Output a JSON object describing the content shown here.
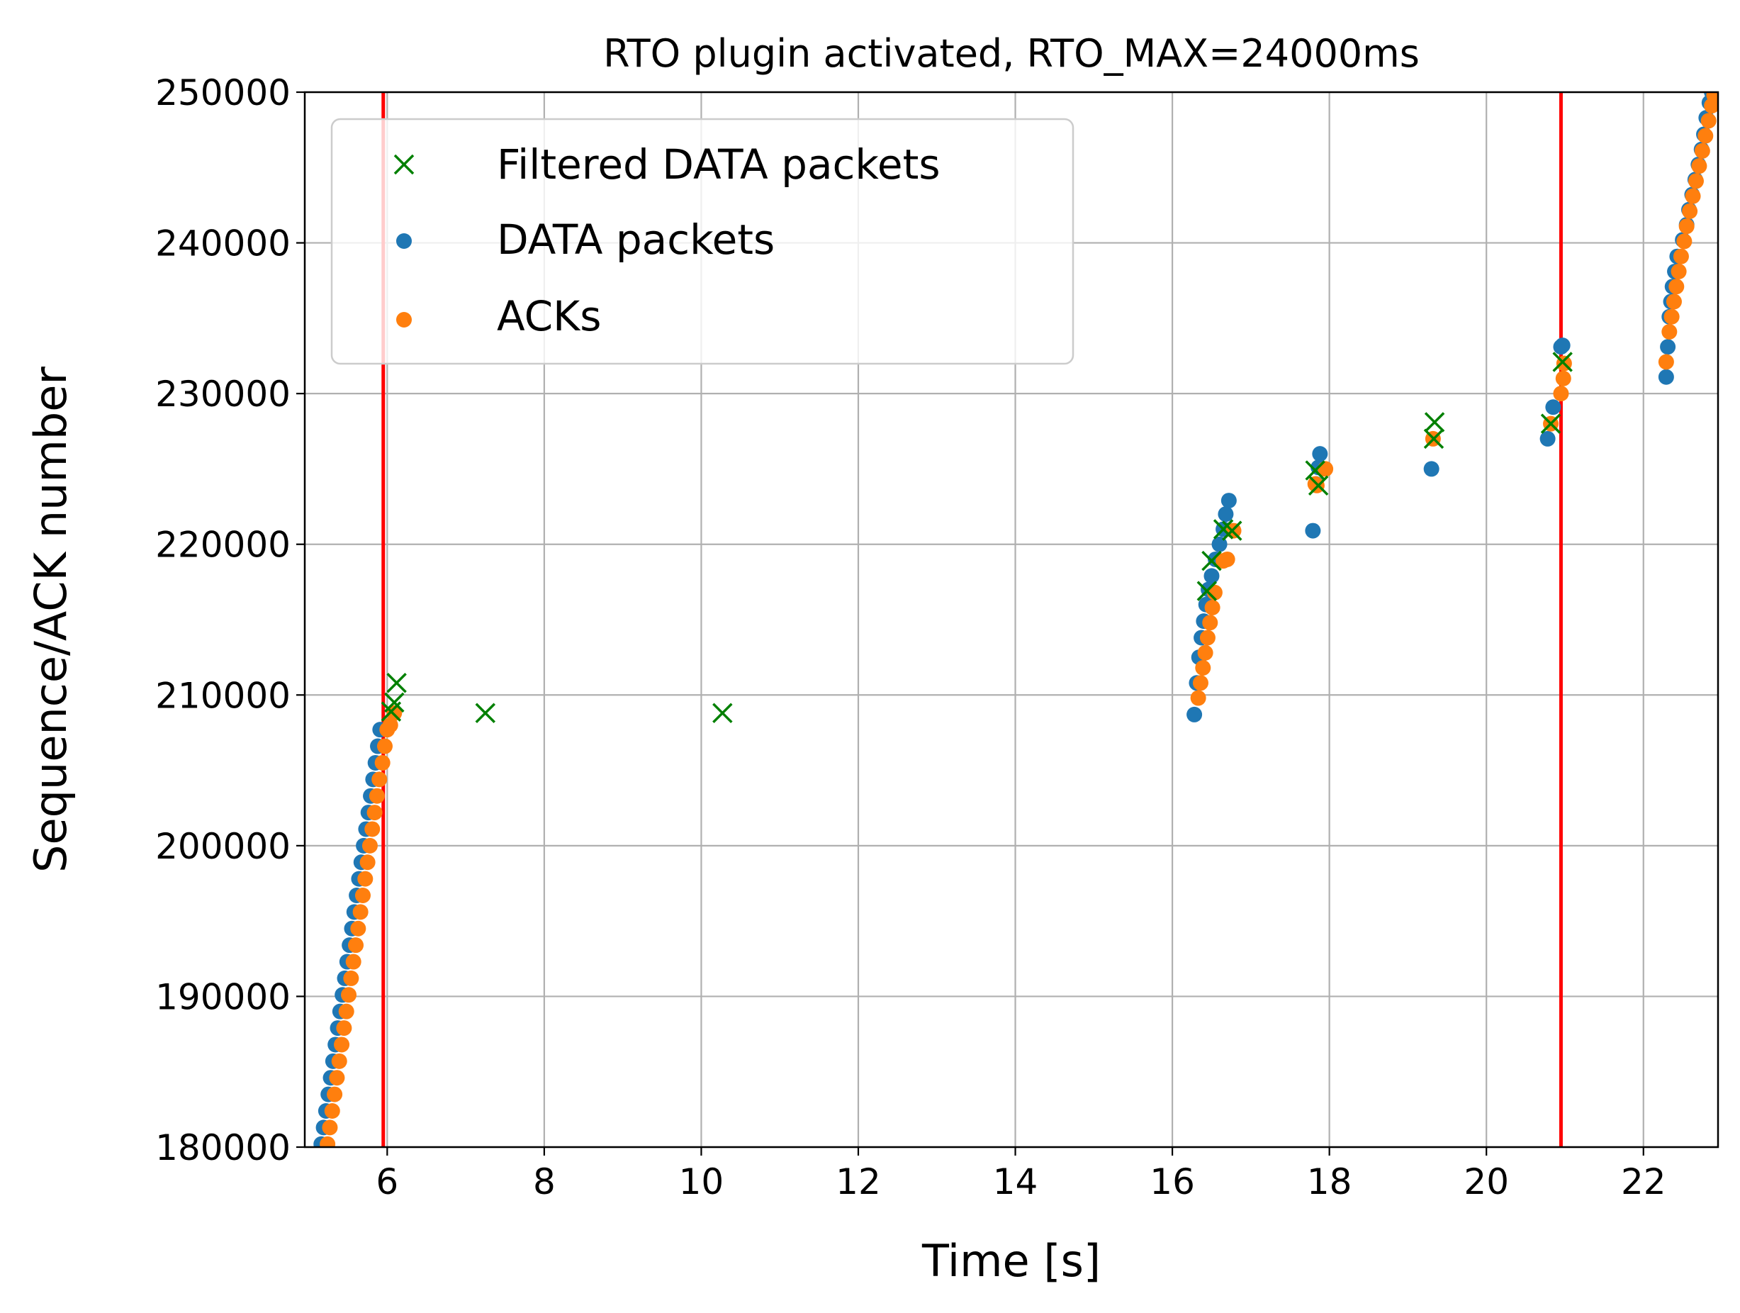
{
  "chart_data": {
    "type": "scatter",
    "title": "RTO plugin activated, RTO_MAX=24000ms",
    "xlabel": "Time [s]",
    "ylabel": "Sequence/ACK number",
    "xlim": [
      4.95,
      22.95
    ],
    "ylim": [
      180000,
      250000
    ],
    "xticks": [
      6,
      8,
      10,
      12,
      14,
      16,
      18,
      20,
      22
    ],
    "xtick_labels": [
      "6",
      "8",
      "10",
      "12",
      "14",
      "16",
      "18",
      "20",
      "22"
    ],
    "yticks": [
      180000,
      190000,
      200000,
      210000,
      220000,
      230000,
      240000,
      250000
    ],
    "ytick_labels": [
      "180000",
      "190000",
      "200000",
      "210000",
      "220000",
      "230000",
      "240000",
      "250000"
    ],
    "grid": true,
    "legend_position": "upper-left",
    "vlines": [
      {
        "x": 5.95,
        "color": "#ff0000"
      },
      {
        "x": 20.95,
        "color": "#ff0000"
      }
    ],
    "series": [
      {
        "name": "Filtered DATA packets",
        "marker": "x",
        "color": "#008000",
        "points": [
          [
            6.05,
            208900
          ],
          [
            6.12,
            210800
          ],
          [
            6.09,
            209500
          ],
          [
            7.25,
            208800
          ],
          [
            10.27,
            208800
          ],
          [
            16.44,
            216900
          ],
          [
            16.5,
            218900
          ],
          [
            16.65,
            221000
          ],
          [
            16.76,
            220900
          ],
          [
            17.82,
            224900
          ],
          [
            17.86,
            223900
          ],
          [
            19.33,
            227000
          ],
          [
            19.34,
            228100
          ],
          [
            20.82,
            228000
          ],
          [
            20.97,
            232100
          ]
        ]
      },
      {
        "name": "DATA packets",
        "marker": "circle",
        "color": "#1f77b4",
        "points": [
          [
            5.16,
            180200
          ],
          [
            5.19,
            181300
          ],
          [
            5.22,
            182400
          ],
          [
            5.25,
            183500
          ],
          [
            5.28,
            184600
          ],
          [
            5.31,
            185700
          ],
          [
            5.34,
            186800
          ],
          [
            5.37,
            187900
          ],
          [
            5.4,
            189000
          ],
          [
            5.43,
            190100
          ],
          [
            5.46,
            191200
          ],
          [
            5.49,
            192300
          ],
          [
            5.52,
            193400
          ],
          [
            5.55,
            194500
          ],
          [
            5.58,
            195600
          ],
          [
            5.61,
            196700
          ],
          [
            5.64,
            197800
          ],
          [
            5.67,
            198900
          ],
          [
            5.7,
            200000
          ],
          [
            5.73,
            201100
          ],
          [
            5.76,
            202200
          ],
          [
            5.79,
            203300
          ],
          [
            5.82,
            204400
          ],
          [
            5.85,
            205500
          ],
          [
            5.88,
            206600
          ],
          [
            5.91,
            207700
          ],
          [
            16.28,
            208700
          ],
          [
            16.31,
            210800
          ],
          [
            16.34,
            212500
          ],
          [
            16.37,
            213800
          ],
          [
            16.4,
            214900
          ],
          [
            16.43,
            216000
          ],
          [
            16.46,
            217000
          ],
          [
            16.5,
            217900
          ],
          [
            16.55,
            219000
          ],
          [
            16.6,
            220000
          ],
          [
            16.65,
            221000
          ],
          [
            16.68,
            222000
          ],
          [
            16.72,
            222900
          ],
          [
            17.79,
            220900
          ],
          [
            17.83,
            224000
          ],
          [
            17.86,
            225100
          ],
          [
            17.88,
            226000
          ],
          [
            19.3,
            225000
          ],
          [
            20.78,
            227000
          ],
          [
            20.85,
            229100
          ],
          [
            20.95,
            233100
          ],
          [
            20.97,
            233200
          ],
          [
            22.29,
            231100
          ],
          [
            22.31,
            233100
          ],
          [
            22.33,
            235100
          ],
          [
            22.35,
            236100
          ],
          [
            22.37,
            237100
          ],
          [
            22.4,
            238100
          ],
          [
            22.43,
            239100
          ],
          [
            22.5,
            240200
          ],
          [
            22.55,
            241200
          ],
          [
            22.58,
            242200
          ],
          [
            22.62,
            243200
          ],
          [
            22.66,
            244200
          ],
          [
            22.7,
            245200
          ],
          [
            22.74,
            246200
          ],
          [
            22.77,
            247200
          ],
          [
            22.8,
            248300
          ],
          [
            22.84,
            249300
          ],
          [
            22.87,
            250000
          ]
        ]
      },
      {
        "name": "ACKs",
        "marker": "circle",
        "color": "#ff7f0e",
        "points": [
          [
            5.24,
            180200
          ],
          [
            5.27,
            181300
          ],
          [
            5.3,
            182400
          ],
          [
            5.33,
            183500
          ],
          [
            5.36,
            184600
          ],
          [
            5.39,
            185700
          ],
          [
            5.42,
            186800
          ],
          [
            5.45,
            187900
          ],
          [
            5.48,
            189000
          ],
          [
            5.51,
            190100
          ],
          [
            5.54,
            191200
          ],
          [
            5.57,
            192300
          ],
          [
            5.6,
            193400
          ],
          [
            5.63,
            194500
          ],
          [
            5.66,
            195600
          ],
          [
            5.69,
            196700
          ],
          [
            5.72,
            197800
          ],
          [
            5.75,
            198900
          ],
          [
            5.78,
            200000
          ],
          [
            5.81,
            201100
          ],
          [
            5.84,
            202200
          ],
          [
            5.87,
            203300
          ],
          [
            5.9,
            204400
          ],
          [
            5.94,
            205500
          ],
          [
            5.97,
            206600
          ],
          [
            6.0,
            207700
          ],
          [
            6.04,
            208000
          ],
          [
            6.09,
            208800
          ],
          [
            16.33,
            209800
          ],
          [
            16.36,
            210800
          ],
          [
            16.39,
            211800
          ],
          [
            16.42,
            212800
          ],
          [
            16.45,
            213800
          ],
          [
            16.48,
            214800
          ],
          [
            16.51,
            215800
          ],
          [
            16.54,
            216800
          ],
          [
            16.65,
            218900
          ],
          [
            16.7,
            219000
          ],
          [
            16.78,
            220900
          ],
          [
            17.82,
            224000
          ],
          [
            17.84,
            223900
          ],
          [
            17.95,
            225000
          ],
          [
            19.32,
            227000
          ],
          [
            20.82,
            228000
          ],
          [
            20.95,
            230000
          ],
          [
            20.98,
            231000
          ],
          [
            20.99,
            232000
          ],
          [
            22.29,
            232100
          ],
          [
            22.33,
            234100
          ],
          [
            22.36,
            235100
          ],
          [
            22.39,
            236100
          ],
          [
            22.42,
            237100
          ],
          [
            22.45,
            238100
          ],
          [
            22.48,
            239100
          ],
          [
            22.52,
            240100
          ],
          [
            22.55,
            241100
          ],
          [
            22.59,
            242100
          ],
          [
            22.63,
            243100
          ],
          [
            22.67,
            244100
          ],
          [
            22.71,
            245100
          ],
          [
            22.75,
            246100
          ],
          [
            22.79,
            247100
          ],
          [
            22.83,
            248100
          ],
          [
            22.87,
            249100
          ],
          [
            22.9,
            249800
          ]
        ]
      }
    ]
  }
}
